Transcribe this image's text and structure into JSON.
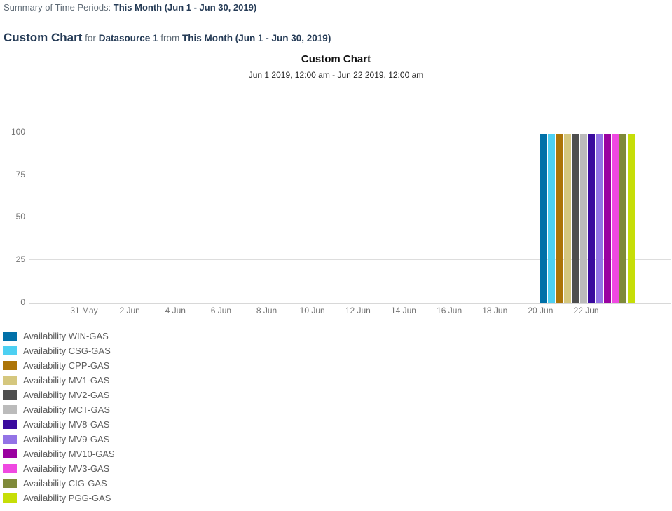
{
  "header": {
    "summary_label": "Summary of Time Periods:",
    "summary_period": "This Month (Jun 1 - Jun 30, 2019)",
    "title": "Custom Chart",
    "for_word": "for",
    "datasource": "Datasource 1",
    "from_word": "from",
    "period": "This Month (Jun 1 - Jun 30, 2019)"
  },
  "chart_data": {
    "type": "bar",
    "title": "Custom Chart",
    "subtitle": "Jun 1 2019, 12:00 am - Jun 22 2019, 12:00 am",
    "xlabel": "",
    "ylabel": "",
    "ylim": [
      0,
      126
    ],
    "y_ticks": [
      0,
      25,
      50,
      75,
      100
    ],
    "x_tick_labels": [
      "31 May",
      "2 Jun",
      "4 Jun",
      "6 Jun",
      "8 Jun",
      "10 Jun",
      "12 Jun",
      "14 Jun",
      "16 Jun",
      "18 Jun",
      "20 Jun",
      "22 Jun"
    ],
    "grid": "horizontal",
    "legend_position": "bottom-left",
    "bar_group_x": "20 Jun - 22 Jun",
    "series": [
      {
        "name": "Availability WIN-GAS",
        "color": "#0070A8",
        "value": 99
      },
      {
        "name": "Availability CSG-GAS",
        "color": "#4DD0F2",
        "value": 99
      },
      {
        "name": "Availability CPP-GAS",
        "color": "#AC7407",
        "value": 99
      },
      {
        "name": "Availability MV1-GAS",
        "color": "#D5C77E",
        "value": 99
      },
      {
        "name": "Availability MV2-GAS",
        "color": "#4E4E4E",
        "value": 99
      },
      {
        "name": "Availability MCT-GAS",
        "color": "#BBBBBB",
        "value": 99
      },
      {
        "name": "Availability MV8-GAS",
        "color": "#3A0A9E",
        "value": 99
      },
      {
        "name": "Availability MV9-GAS",
        "color": "#9373E6",
        "value": 99
      },
      {
        "name": "Availability MV10-GAS",
        "color": "#9A01A0",
        "value": 99
      },
      {
        "name": "Availability MV3-GAS",
        "color": "#EF49E1",
        "value": 99
      },
      {
        "name": "Availability CIG-GAS",
        "color": "#7F8A3A",
        "value": 99
      },
      {
        "name": "Availability PGG-GAS",
        "color": "#C6DE07",
        "value": 99
      }
    ]
  }
}
